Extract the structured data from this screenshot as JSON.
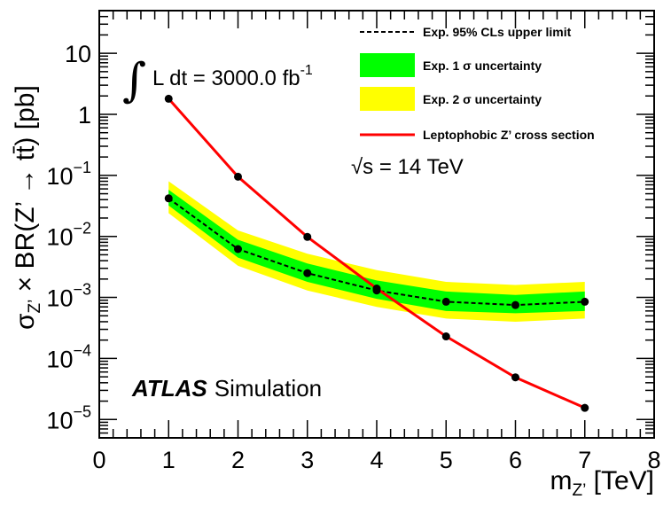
{
  "chart_data": {
    "type": "line",
    "x": [
      1,
      2,
      3,
      4,
      5,
      6,
      7
    ],
    "series": [
      {
        "name": "Exp. 95% CLs upper limit",
        "style": "dashed",
        "values": [
          0.042,
          0.0062,
          0.0025,
          0.0013,
          0.00085,
          0.00075,
          0.00085
        ]
      },
      {
        "name": "Exp. 1 σ uncertainty",
        "style": "band",
        "color": "#00ff00",
        "low": [
          0.032,
          0.0045,
          0.0018,
          0.00095,
          0.0006,
          0.00055,
          0.0006
        ],
        "high": [
          0.058,
          0.0088,
          0.0036,
          0.0019,
          0.00125,
          0.0011,
          0.00125
        ]
      },
      {
        "name": "Exp. 2 σ uncertainty",
        "style": "band",
        "color": "#ffff00",
        "low": [
          0.024,
          0.0033,
          0.0013,
          0.0007,
          0.00045,
          0.0004,
          0.00045
        ],
        "high": [
          0.08,
          0.0125,
          0.0052,
          0.0028,
          0.0018,
          0.0016,
          0.0018
        ]
      },
      {
        "name": "Leptophobic Z’ cross section",
        "style": "solid",
        "color": "#ff0000",
        "values": [
          1.8,
          0.095,
          0.0098,
          0.0014,
          0.00023,
          4.9e-05,
          1.55e-05
        ]
      }
    ],
    "xlabel_main": "m",
    "xlabel_sub": "Z’",
    "xlabel_unit": " [TeV]",
    "ylabel_main": "σ",
    "ylabel_sub": "Z’",
    "ylabel_rest": " × BR(Z’ → tt̄) [pb]",
    "xlim": [
      0,
      8
    ],
    "ylim": [
      5e-06,
      50
    ],
    "yscale": "log",
    "xticks": [
      "0",
      "1",
      "2",
      "3",
      "4",
      "5",
      "6",
      "7",
      "8"
    ],
    "yticks": [
      {
        "base": "10",
        "exp": "",
        "value": 10
      },
      {
        "base": "1",
        "exp": "",
        "value": 1
      },
      {
        "base": "10",
        "exp": "−1",
        "value": 0.1
      },
      {
        "base": "10",
        "exp": "−2",
        "value": 0.01
      },
      {
        "base": "10",
        "exp": "−3",
        "value": 0.001
      },
      {
        "base": "10",
        "exp": "−4",
        "value": 0.0001
      },
      {
        "base": "10",
        "exp": "−5",
        "value": 1e-05
      }
    ],
    "legend": [
      "Exp. 95% CLs upper limit",
      "Exp. 1 σ uncertainty",
      "Exp. 2  σ uncertainty",
      "Leptophobic Z’ cross section"
    ],
    "legend_position": "top-right",
    "annotations": {
      "lumi_integral": "∫",
      "lumi_text": "L dt = 3000.0 fb",
      "lumi_exp": "-1",
      "energy_root": "√",
      "energy_text": "s = 14 TeV",
      "experiment": "ATLAS",
      "label": "Simulation"
    }
  }
}
